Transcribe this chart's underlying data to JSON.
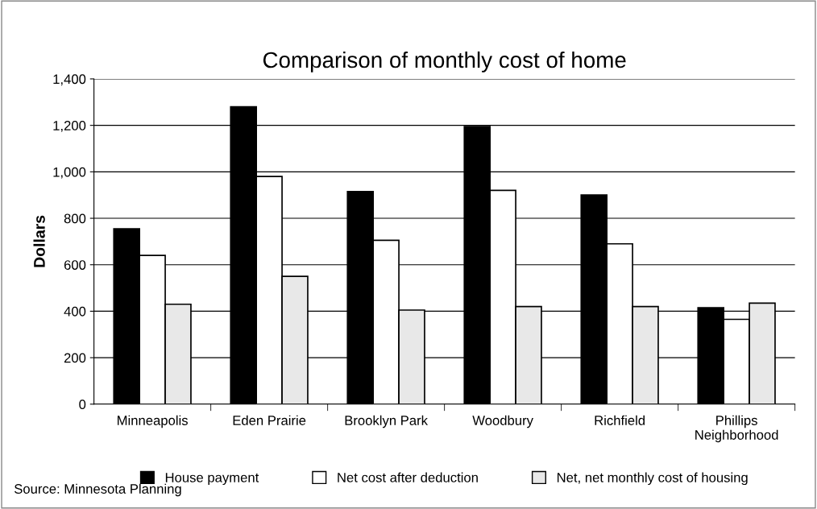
{
  "chart_data": {
    "type": "bar",
    "title": "Comparison of monthly cost of home",
    "ylabel": "Dollars",
    "categories": [
      "Minneapolis",
      "Eden Prairie",
      "Brooklyn Park",
      "Woodbury",
      "Richfield",
      "Phillips\nNeighborhood"
    ],
    "series": [
      {
        "name": "House payment",
        "color": "#000000",
        "values": [
          755,
          1280,
          915,
          1195,
          900,
          415
        ]
      },
      {
        "name": "Net cost after deduction",
        "color": "#ffffff",
        "values": [
          640,
          980,
          705,
          920,
          690,
          365
        ]
      },
      {
        "name": "Net, net monthly cost of housing",
        "color": "#e8e8e8",
        "values": [
          430,
          550,
          405,
          420,
          420,
          435
        ]
      }
    ],
    "ylim": [
      0,
      1400
    ],
    "yticks": [
      {
        "value": 0,
        "label": "0"
      },
      {
        "value": 200,
        "label": "200"
      },
      {
        "value": 400,
        "label": "400"
      },
      {
        "value": 600,
        "label": "600"
      },
      {
        "value": 800,
        "label": "800"
      },
      {
        "value": 1000,
        "label": "1,000"
      },
      {
        "value": 1200,
        "label": "1,200"
      },
      {
        "value": 1400,
        "label": "1,400"
      }
    ],
    "grid": "y",
    "legend": "bottom",
    "annotations": [
      "Source: Minnesota Planning"
    ]
  }
}
